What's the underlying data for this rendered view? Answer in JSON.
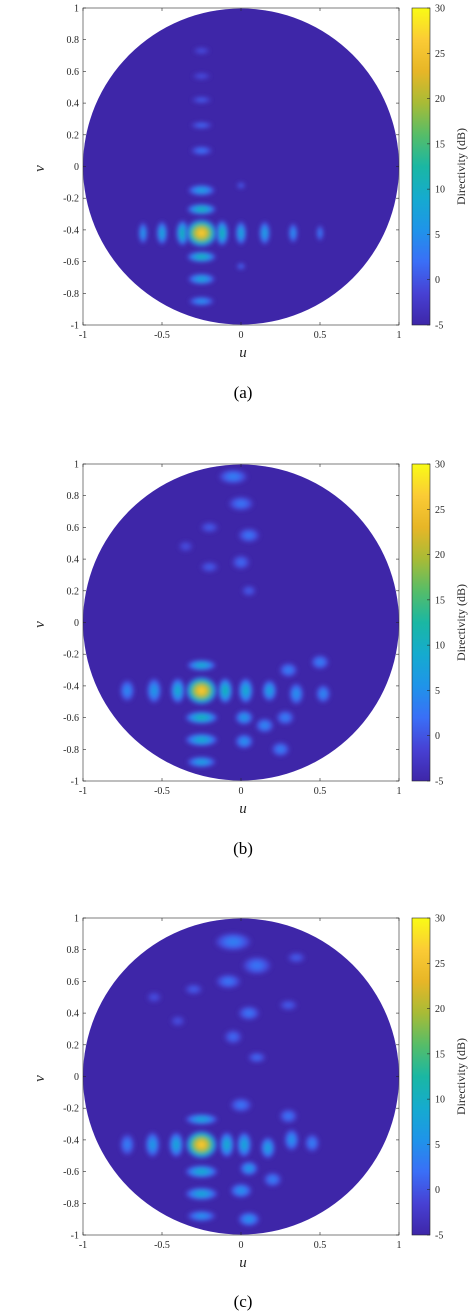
{
  "colorbar_colors": [
    "#3e26a8",
    "#4741d4",
    "#3a6ff7",
    "#1f94e9",
    "#15abcf",
    "#1ab7a3",
    "#56bd68",
    "#a8bb36",
    "#e7b627",
    "#fbcb35",
    "#f9fb15"
  ],
  "background_color": "#3e26a8",
  "chart_data": [
    {
      "type": "heatmap",
      "panel": "(a)",
      "xlabel": "u",
      "ylabel": "v",
      "colorbar_label": "Directivity (dB)",
      "xlim": [
        -1,
        1
      ],
      "ylim": [
        -1,
        1
      ],
      "xticks": [
        "-1",
        "-0.5",
        "0",
        "0.5",
        "1"
      ],
      "yticks": [
        "1",
        "0.8",
        "0.6",
        "0.4",
        "0.2",
        "0",
        "-0.2",
        "-0.4",
        "-0.6",
        "-0.8",
        "-1"
      ],
      "colorbar_range": [
        -5,
        30
      ],
      "colorbar_ticks": [
        "30",
        "25",
        "20",
        "15",
        "10",
        "5",
        "0",
        "-5"
      ],
      "background_db": -5,
      "main_beam": {
        "u": -0.25,
        "v": -0.42,
        "peak_db": 27
      },
      "lobes": [
        {
          "u": -0.25,
          "v": -0.42,
          "db": 27,
          "ru": 0.085,
          "rv": 0.075
        },
        {
          "u": -0.37,
          "v": -0.42,
          "db": 12,
          "ru": 0.035,
          "rv": 0.07
        },
        {
          "u": -0.5,
          "v": -0.42,
          "db": 9,
          "ru": 0.03,
          "rv": 0.065
        },
        {
          "u": -0.62,
          "v": -0.42,
          "db": 7,
          "ru": 0.025,
          "rv": 0.06
        },
        {
          "u": -0.12,
          "v": -0.42,
          "db": 12,
          "ru": 0.035,
          "rv": 0.07
        },
        {
          "u": 0.0,
          "v": -0.42,
          "db": 9,
          "ru": 0.03,
          "rv": 0.065
        },
        {
          "u": 0.15,
          "v": -0.42,
          "db": 8,
          "ru": 0.03,
          "rv": 0.065
        },
        {
          "u": 0.33,
          "v": -0.42,
          "db": 6,
          "ru": 0.025,
          "rv": 0.055
        },
        {
          "u": 0.5,
          "v": -0.42,
          "db": 4,
          "ru": 0.02,
          "rv": 0.045
        },
        {
          "u": -0.25,
          "v": -0.27,
          "db": 12,
          "ru": 0.08,
          "rv": 0.03
        },
        {
          "u": -0.25,
          "v": -0.15,
          "db": 8,
          "ru": 0.075,
          "rv": 0.03
        },
        {
          "u": -0.25,
          "v": -0.57,
          "db": 12,
          "ru": 0.08,
          "rv": 0.03
        },
        {
          "u": -0.25,
          "v": -0.71,
          "db": 9,
          "ru": 0.075,
          "rv": 0.03
        },
        {
          "u": -0.25,
          "v": -0.85,
          "db": 6,
          "ru": 0.07,
          "rv": 0.025
        },
        {
          "u": -0.25,
          "v": 0.1,
          "db": 3,
          "ru": 0.06,
          "rv": 0.025
        },
        {
          "u": -0.25,
          "v": 0.26,
          "db": 2,
          "ru": 0.06,
          "rv": 0.02
        },
        {
          "u": -0.25,
          "v": 0.42,
          "db": 1,
          "ru": 0.055,
          "rv": 0.02
        },
        {
          "u": -0.25,
          "v": 0.57,
          "db": 0,
          "ru": 0.05,
          "rv": 0.02
        },
        {
          "u": -0.25,
          "v": 0.73,
          "db": 0,
          "ru": 0.045,
          "rv": 0.02
        },
        {
          "u": 0.0,
          "v": -0.12,
          "db": 1,
          "ru": 0.025,
          "rv": 0.02
        },
        {
          "u": 0.0,
          "v": -0.63,
          "db": 2,
          "ru": 0.025,
          "rv": 0.02
        }
      ],
      "caption": "(a)"
    },
    {
      "type": "heatmap",
      "panel": "(b)",
      "xlabel": "u",
      "ylabel": "v",
      "colorbar_label": "Directivity (dB)",
      "xlim": [
        -1,
        1
      ],
      "ylim": [
        -1,
        1
      ],
      "xticks": [
        "-1",
        "-0.5",
        "0",
        "0.5",
        "1"
      ],
      "yticks": [
        "1",
        "0.8",
        "0.6",
        "0.4",
        "0.2",
        "0",
        "-0.2",
        "-0.4",
        "-0.6",
        "-0.8",
        "-1"
      ],
      "colorbar_range": [
        -5,
        30
      ],
      "colorbar_ticks": [
        "30",
        "25",
        "20",
        "15",
        "10",
        "5",
        "0",
        "-5"
      ],
      "background_db": -5,
      "main_beam": {
        "u": -0.25,
        "v": -0.43,
        "peak_db": 27
      },
      "lobes": [
        {
          "u": -0.25,
          "v": -0.43,
          "db": 27,
          "ru": 0.085,
          "rv": 0.075
        },
        {
          "u": -0.4,
          "v": -0.43,
          "db": 10,
          "ru": 0.04,
          "rv": 0.07
        },
        {
          "u": -0.55,
          "v": -0.43,
          "db": 7,
          "ru": 0.04,
          "rv": 0.07
        },
        {
          "u": -0.72,
          "v": -0.43,
          "db": 5,
          "ru": 0.04,
          "rv": 0.06
        },
        {
          "u": -0.1,
          "v": -0.43,
          "db": 12,
          "ru": 0.04,
          "rv": 0.07
        },
        {
          "u": 0.03,
          "v": -0.43,
          "db": 10,
          "ru": 0.04,
          "rv": 0.07
        },
        {
          "u": 0.18,
          "v": -0.43,
          "db": 8,
          "ru": 0.04,
          "rv": 0.06
        },
        {
          "u": 0.35,
          "v": -0.45,
          "db": 6,
          "ru": 0.04,
          "rv": 0.06
        },
        {
          "u": 0.52,
          "v": -0.45,
          "db": 5,
          "ru": 0.04,
          "rv": 0.05
        },
        {
          "u": 0.5,
          "v": -0.25,
          "db": 4,
          "ru": 0.05,
          "rv": 0.04
        },
        {
          "u": 0.3,
          "v": -0.3,
          "db": 4,
          "ru": 0.05,
          "rv": 0.04
        },
        {
          "u": -0.25,
          "v": -0.27,
          "db": 10,
          "ru": 0.08,
          "rv": 0.03
        },
        {
          "u": -0.25,
          "v": -0.6,
          "db": 12,
          "ru": 0.09,
          "rv": 0.035
        },
        {
          "u": -0.25,
          "v": -0.74,
          "db": 10,
          "ru": 0.09,
          "rv": 0.035
        },
        {
          "u": -0.25,
          "v": -0.88,
          "db": 8,
          "ru": 0.08,
          "rv": 0.03
        },
        {
          "u": 0.02,
          "v": -0.6,
          "db": 7,
          "ru": 0.05,
          "rv": 0.04
        },
        {
          "u": 0.02,
          "v": -0.75,
          "db": 6,
          "ru": 0.05,
          "rv": 0.04
        },
        {
          "u": 0.15,
          "v": -0.65,
          "db": 5,
          "ru": 0.05,
          "rv": 0.04
        },
        {
          "u": 0.28,
          "v": -0.6,
          "db": 4,
          "ru": 0.05,
          "rv": 0.04
        },
        {
          "u": 0.25,
          "v": -0.8,
          "db": 4,
          "ru": 0.05,
          "rv": 0.04
        },
        {
          "u": -0.05,
          "v": 0.92,
          "db": 4,
          "ru": 0.08,
          "rv": 0.04
        },
        {
          "u": 0.0,
          "v": 0.75,
          "db": 3,
          "ru": 0.07,
          "rv": 0.04
        },
        {
          "u": 0.05,
          "v": 0.55,
          "db": 3,
          "ru": 0.06,
          "rv": 0.04
        },
        {
          "u": 0.0,
          "v": 0.38,
          "db": 2,
          "ru": 0.05,
          "rv": 0.04
        },
        {
          "u": -0.2,
          "v": 0.6,
          "db": 1,
          "ru": 0.05,
          "rv": 0.03
        },
        {
          "u": -0.2,
          "v": 0.35,
          "db": 1,
          "ru": 0.05,
          "rv": 0.03
        },
        {
          "u": -0.35,
          "v": 0.48,
          "db": 0,
          "ru": 0.04,
          "rv": 0.03
        },
        {
          "u": 0.05,
          "v": 0.2,
          "db": 1,
          "ru": 0.04,
          "rv": 0.03
        }
      ],
      "caption": "(b)"
    },
    {
      "type": "heatmap",
      "panel": "(c)",
      "xlabel": "u",
      "ylabel": "v",
      "colorbar_label": "Directivity (dB)",
      "xlim": [
        -1,
        1
      ],
      "ylim": [
        -1,
        1
      ],
      "xticks": [
        "-1",
        "-0.5",
        "0",
        "0.5",
        "1"
      ],
      "yticks": [
        "1",
        "0.8",
        "0.6",
        "0.4",
        "0.2",
        "0",
        "-0.2",
        "-0.4",
        "-0.6",
        "-0.8",
        "-1"
      ],
      "colorbar_range": [
        -5,
        30
      ],
      "colorbar_ticks": [
        "30",
        "25",
        "20",
        "15",
        "10",
        "5",
        "0",
        "-5"
      ],
      "background_db": -5,
      "main_beam": {
        "u": -0.25,
        "v": -0.43,
        "peak_db": 27
      },
      "lobes": [
        {
          "u": -0.25,
          "v": -0.43,
          "db": 27,
          "ru": 0.085,
          "rv": 0.075
        },
        {
          "u": -0.41,
          "v": -0.43,
          "db": 9,
          "ru": 0.04,
          "rv": 0.07
        },
        {
          "u": -0.56,
          "v": -0.43,
          "db": 7,
          "ru": 0.04,
          "rv": 0.07
        },
        {
          "u": -0.72,
          "v": -0.43,
          "db": 4,
          "ru": 0.04,
          "rv": 0.06
        },
        {
          "u": -0.09,
          "v": -0.43,
          "db": 10,
          "ru": 0.04,
          "rv": 0.07
        },
        {
          "u": 0.02,
          "v": -0.43,
          "db": 9,
          "ru": 0.04,
          "rv": 0.07
        },
        {
          "u": 0.17,
          "v": -0.45,
          "db": 8,
          "ru": 0.04,
          "rv": 0.06
        },
        {
          "u": 0.32,
          "v": -0.4,
          "db": 6,
          "ru": 0.04,
          "rv": 0.06
        },
        {
          "u": 0.45,
          "v": -0.42,
          "db": 4,
          "ru": 0.04,
          "rv": 0.05
        },
        {
          "u": -0.25,
          "v": -0.27,
          "db": 9,
          "ru": 0.09,
          "rv": 0.03
        },
        {
          "u": -0.25,
          "v": -0.6,
          "db": 10,
          "ru": 0.09,
          "rv": 0.035
        },
        {
          "u": -0.25,
          "v": -0.74,
          "db": 9,
          "ru": 0.09,
          "rv": 0.035
        },
        {
          "u": -0.25,
          "v": -0.88,
          "db": 6,
          "ru": 0.08,
          "rv": 0.03
        },
        {
          "u": 0.05,
          "v": -0.58,
          "db": 7,
          "ru": 0.05,
          "rv": 0.04
        },
        {
          "u": 0.0,
          "v": -0.72,
          "db": 6,
          "ru": 0.06,
          "rv": 0.04
        },
        {
          "u": 0.05,
          "v": -0.9,
          "db": 6,
          "ru": 0.06,
          "rv": 0.04
        },
        {
          "u": 0.2,
          "v": -0.65,
          "db": 4,
          "ru": 0.05,
          "rv": 0.04
        },
        {
          "u": 0.3,
          "v": -0.25,
          "db": 3,
          "ru": 0.05,
          "rv": 0.04
        },
        {
          "u": 0.0,
          "v": -0.18,
          "db": 3,
          "ru": 0.06,
          "rv": 0.04
        },
        {
          "u": -0.05,
          "v": 0.85,
          "db": 4,
          "ru": 0.1,
          "rv": 0.05
        },
        {
          "u": 0.1,
          "v": 0.7,
          "db": 3,
          "ru": 0.08,
          "rv": 0.05
        },
        {
          "u": -0.08,
          "v": 0.6,
          "db": 3,
          "ru": 0.07,
          "rv": 0.04
        },
        {
          "u": 0.05,
          "v": 0.4,
          "db": 3,
          "ru": 0.06,
          "rv": 0.04
        },
        {
          "u": -0.05,
          "v": 0.25,
          "db": 2,
          "ru": 0.05,
          "rv": 0.04
        },
        {
          "u": 0.1,
          "v": 0.12,
          "db": 2,
          "ru": 0.05,
          "rv": 0.03
        },
        {
          "u": -0.3,
          "v": 0.55,
          "db": 1,
          "ru": 0.05,
          "rv": 0.03
        },
        {
          "u": -0.4,
          "v": 0.35,
          "db": 0,
          "ru": 0.04,
          "rv": 0.03
        },
        {
          "u": -0.55,
          "v": 0.5,
          "db": 0,
          "ru": 0.04,
          "rv": 0.03
        },
        {
          "u": 0.3,
          "v": 0.45,
          "db": 1,
          "ru": 0.05,
          "rv": 0.03
        },
        {
          "u": 0.35,
          "v": 0.75,
          "db": 1,
          "ru": 0.05,
          "rv": 0.03
        }
      ],
      "caption": "(c)"
    }
  ]
}
